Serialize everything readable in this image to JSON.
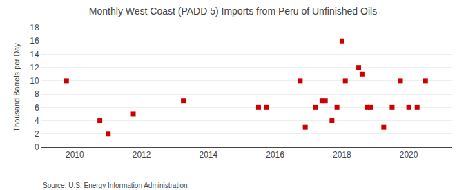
{
  "chart_data": {
    "type": "scatter",
    "title": "Monthly West Coast (PADD 5) Imports from Peru of Unfinished Oils",
    "ylabel": "Thousand Barrels per Day",
    "annotations": [
      "Source: U.S. Energy Information Administration"
    ],
    "x": [
      2009.75,
      2010.75,
      2011.0,
      2011.75,
      2013.25,
      2015.5,
      2015.75,
      2016.75,
      2016.9,
      2017.2,
      2017.4,
      2017.5,
      2017.7,
      2017.85,
      2018.0,
      2018.1,
      2018.5,
      2018.6,
      2018.75,
      2018.85,
      2019.25,
      2019.5,
      2019.75,
      2020.0,
      2020.25,
      2020.5
    ],
    "values": [
      10,
      4,
      2,
      5,
      7,
      6,
      6,
      10,
      3,
      6,
      7,
      7,
      4,
      6,
      16,
      10,
      12,
      11,
      6,
      6,
      3,
      6,
      10,
      6,
      6,
      10
    ],
    "color": "#cc0000",
    "marker": "square",
    "xlim": [
      2009.0,
      2021.3
    ],
    "xticks": [
      2010,
      2012,
      2014,
      2016,
      2018,
      2020
    ],
    "ylim": [
      0,
      18
    ],
    "yticks": [
      0,
      2,
      4,
      6,
      8,
      10,
      12,
      14,
      16,
      18
    ],
    "grid": true
  }
}
